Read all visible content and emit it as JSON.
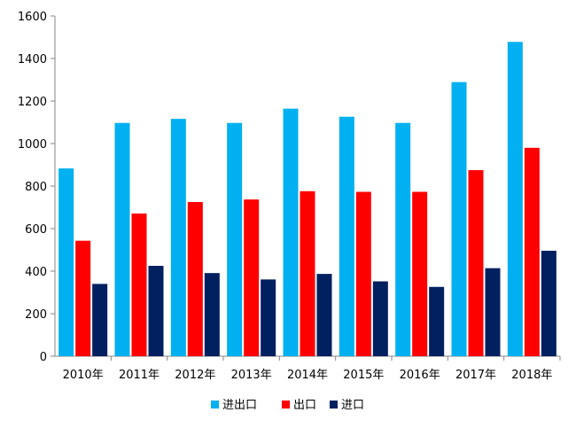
{
  "chart_data": {
    "type": "bar",
    "title": "",
    "xlabel": "",
    "ylabel": "",
    "categories": [
      "2010年",
      "2011年",
      "2012年",
      "2013年",
      "2014年",
      "2015年",
      "2016年",
      "2017年",
      "2018年"
    ],
    "series": [
      {
        "name": "进出口",
        "color": "#00b0f0",
        "values": [
          883,
          1097,
          1116,
          1097,
          1164,
          1126,
          1097,
          1289,
          1478
        ]
      },
      {
        "name": "出口",
        "color": "#ff0000",
        "values": [
          543,
          671,
          725,
          737,
          776,
          773,
          773,
          875,
          980
        ]
      },
      {
        "name": "进口",
        "color": "#002060",
        "values": [
          340,
          425,
          391,
          361,
          387,
          352,
          326,
          414,
          496
        ]
      }
    ],
    "ylim": [
      0,
      1600
    ],
    "yticks": [
      0,
      200,
      400,
      600,
      800,
      1000,
      1200,
      1400,
      1600
    ],
    "grid": false,
    "legend_position": "bottom"
  }
}
